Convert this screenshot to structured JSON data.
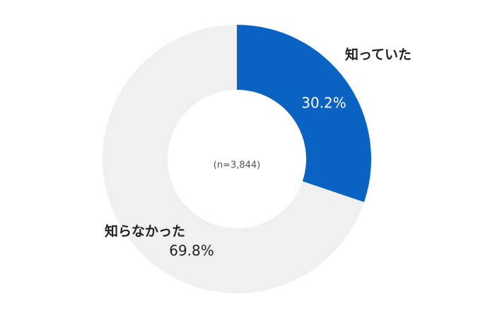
{
  "chart_data": {
    "type": "pie",
    "categories": [
      "知っていた",
      "知らなかった"
    ],
    "values": [
      30.2,
      69.8
    ],
    "value_labels": [
      "30.2%",
      "69.8%"
    ],
    "colors": [
      "#0a62c2",
      "#f0f0f0"
    ],
    "center_note": "(n=3,844)"
  }
}
